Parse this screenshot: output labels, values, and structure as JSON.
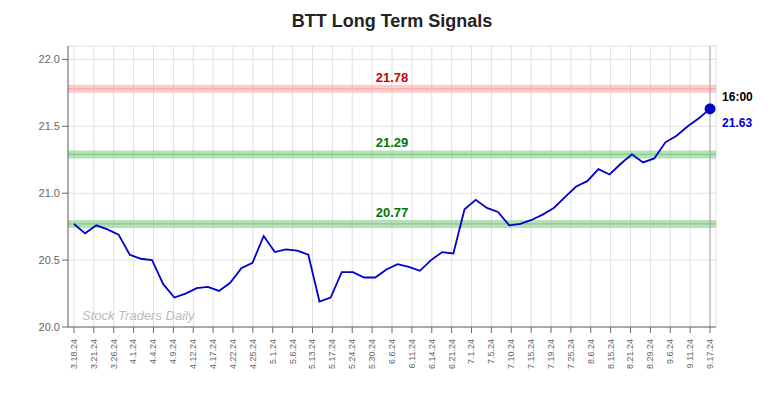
{
  "chart_data": {
    "type": "line",
    "title": "BTT Long Term Signals",
    "color": "#0000cc",
    "grid": true,
    "values": [
      20.77,
      20.7,
      20.76,
      20.73,
      20.69,
      20.54,
      20.51,
      20.5,
      20.32,
      20.22,
      20.25,
      20.29,
      20.3,
      20.27,
      20.33,
      20.44,
      20.48,
      20.68,
      20.56,
      20.58,
      20.57,
      20.54,
      20.19,
      20.22,
      20.41,
      20.41,
      20.37,
      20.37,
      20.43,
      20.47,
      20.45,
      20.42,
      20.5,
      20.56,
      20.55,
      20.88,
      20.95,
      20.89,
      20.86,
      20.76,
      20.77,
      20.8,
      20.84,
      20.89,
      20.97,
      21.05,
      21.09,
      21.18,
      21.14,
      21.22,
      21.29,
      21.23,
      21.26,
      21.38,
      21.43,
      21.5,
      21.56,
      21.63
    ],
    "xlim": [
      -0.534375,
      57.534375
    ],
    "xticks": [
      {
        "value": 0,
        "label": "3.18.24"
      },
      {
        "value": 1.78125,
        "label": "3.21.24"
      },
      {
        "value": 3.5625,
        "label": "3.26.24"
      },
      {
        "value": 5.34375,
        "label": "4.1.24"
      },
      {
        "value": 7.125,
        "label": "4.4.24"
      },
      {
        "value": 8.90625,
        "label": "4.9.24"
      },
      {
        "value": 10.6875,
        "label": "4.12.24"
      },
      {
        "value": 12.46875,
        "label": "4.17.24"
      },
      {
        "value": 14.25,
        "label": "4.22.24"
      },
      {
        "value": 16.03125,
        "label": "4.25.24"
      },
      {
        "value": 17.8125,
        "label": "5.1.24"
      },
      {
        "value": 19.59375,
        "label": "5.6.24"
      },
      {
        "value": 21.375,
        "label": "5.13.24"
      },
      {
        "value": 23.15625,
        "label": "5.17.24"
      },
      {
        "value": 24.9375,
        "label": "5.24.24"
      },
      {
        "value": 26.71875,
        "label": "5.30.24"
      },
      {
        "value": 28.5,
        "label": "6.6.24"
      },
      {
        "value": 30.28125,
        "label": "6.11.24"
      },
      {
        "value": 32.0625,
        "label": "6.14.24"
      },
      {
        "value": 33.84375,
        "label": "6.21.24"
      },
      {
        "value": 35.625,
        "label": "7.1.24"
      },
      {
        "value": 37.40625,
        "label": "7.5.24"
      },
      {
        "value": 39.1875,
        "label": "7.10.24"
      },
      {
        "value": 40.96875,
        "label": "7.15.24"
      },
      {
        "value": 42.75,
        "label": "7.19.24"
      },
      {
        "value": 44.53125,
        "label": "7.25.24"
      },
      {
        "value": 46.3125,
        "label": "8.6.24"
      },
      {
        "value": 48.09375,
        "label": "8.15.24"
      },
      {
        "value": 49.875,
        "label": "8.21.24"
      },
      {
        "value": 51.65625,
        "label": "8.29.24"
      },
      {
        "value": 53.4375,
        "label": "9.6.24"
      },
      {
        "value": 55.21875,
        "label": "9.11.24"
      },
      {
        "value": 57,
        "label": "9.17.24"
      }
    ],
    "ylim": [
      20.0,
      22.1
    ],
    "yticks": [
      {
        "value": 20.0,
        "label": "20.0"
      },
      {
        "value": 20.5,
        "label": "20.5"
      },
      {
        "value": 21.0,
        "label": "21.0"
      },
      {
        "value": 21.5,
        "label": "21.5"
      },
      {
        "value": 22.0,
        "label": "22.0"
      }
    ],
    "hlines": [
      {
        "value": 21.78,
        "label": "21.78",
        "color": "#ffaaaa",
        "label_color": "#cc0000"
      },
      {
        "value": 21.29,
        "label": "21.29",
        "color": "#88cc88",
        "label_color": "#007700"
      },
      {
        "value": 20.77,
        "label": "20.77",
        "color": "#88cc88",
        "label_color": "#007700"
      }
    ],
    "end_labels": [
      {
        "text": "16:00",
        "color": "#000000"
      },
      {
        "text": "21.63",
        "color": "#0000cc"
      }
    ],
    "watermark": {
      "text": "Stock Traders Daily",
      "color": "#bbbbbb"
    }
  }
}
